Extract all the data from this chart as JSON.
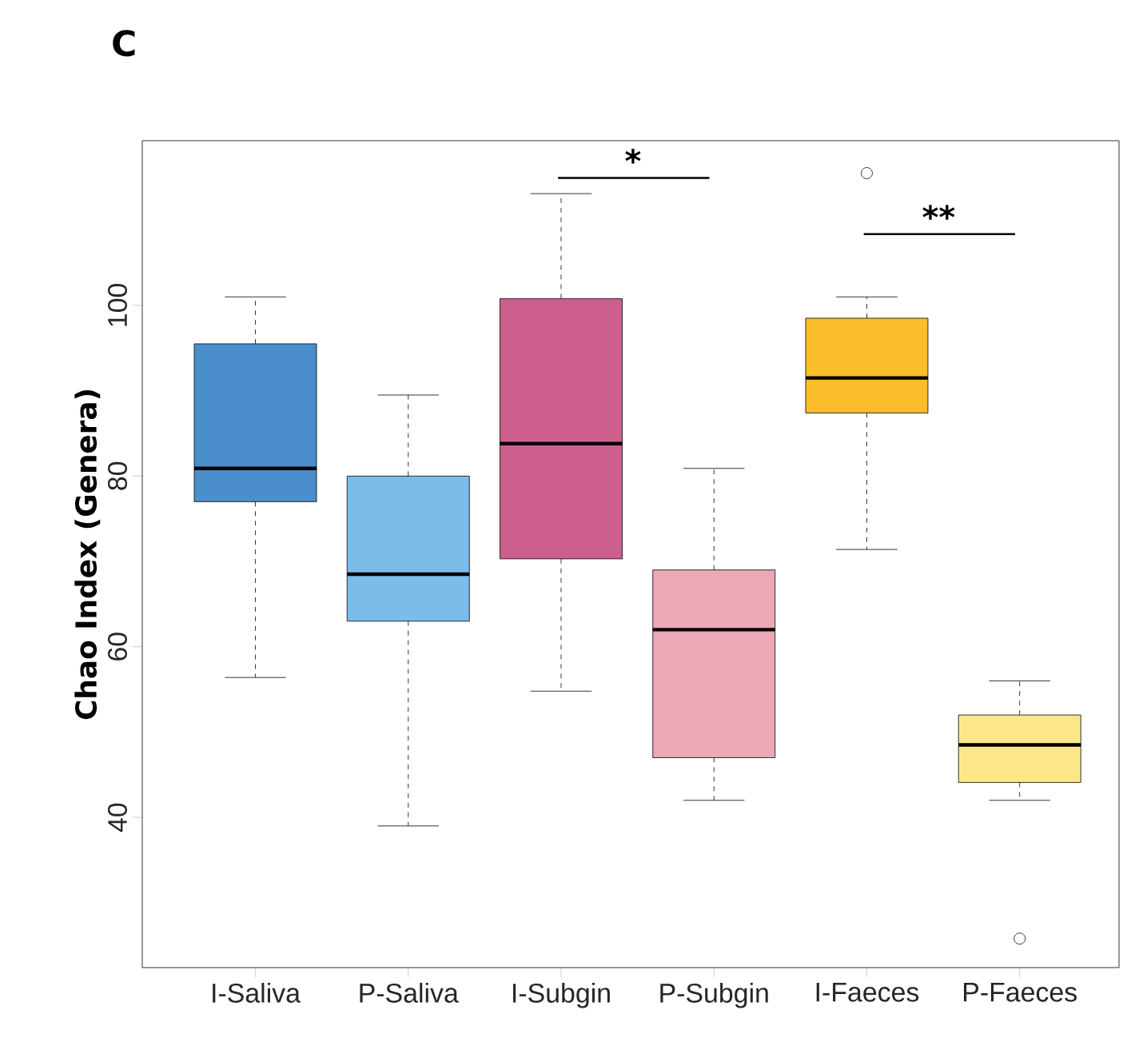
{
  "chart_data": {
    "type": "box",
    "title": "C",
    "ylabel": "Chao Index (Genera)",
    "categories": [
      "I-Saliva",
      "P-Saliva",
      "I-Subgin",
      "P-Subgin",
      "I-Faeces",
      "P-Faeces"
    ],
    "colors": [
      "#4a8fcc",
      "#7bbcea",
      "#cc5f8e",
      "#eba8b6",
      "#fbbd2a",
      "#fde78a"
    ],
    "boxes": [
      {
        "low": 56.4,
        "q1": 77.0,
        "median": 80.9,
        "q3": 95.5,
        "high": 101.0
      },
      {
        "low": 39.0,
        "q1": 63.0,
        "median": 68.5,
        "q3": 80.0,
        "high": 89.5
      },
      {
        "low": 54.8,
        "q1": 70.3,
        "median": 83.8,
        "q3": 100.8,
        "high": 113.1
      },
      {
        "low": 42.0,
        "q1": 47.0,
        "median": 62.0,
        "q3": 69.0,
        "high": 80.9
      },
      {
        "low": 71.4,
        "q1": 87.4,
        "median": 91.5,
        "q3": 98.5,
        "high": 101.0,
        "outliers": [
          115.5
        ]
      },
      {
        "low": 42.0,
        "q1": 44.1,
        "median": 48.5,
        "q3": 52.0,
        "high": 56.0,
        "outliers": [
          25.8
        ]
      }
    ],
    "ylim": [
      22.4,
      119.3
    ],
    "yticks": [
      40,
      60,
      80,
      100
    ],
    "annotations": [
      "*",
      "**"
    ]
  }
}
